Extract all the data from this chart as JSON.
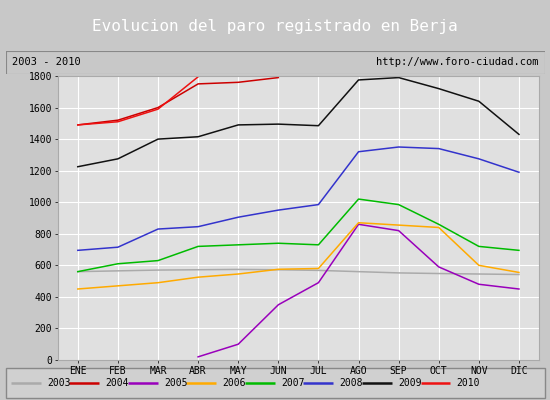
{
  "title": "Evolucion del paro registrado en Berja",
  "subtitle_left": "2003 - 2010",
  "subtitle_right": "http://www.foro-ciudad.com",
  "months": [
    "ENE",
    "FEB",
    "MAR",
    "ABR",
    "MAY",
    "JUN",
    "JUL",
    "AGO",
    "SEP",
    "OCT",
    "NOV",
    "DIC"
  ],
  "series_ordered": [
    "2003",
    "2004",
    "2005",
    "2006",
    "2007",
    "2008",
    "2009",
    "2010"
  ],
  "series_data": {
    "2003": [
      560,
      565,
      570,
      572,
      574,
      572,
      568,
      560,
      552,
      548,
      545,
      542
    ],
    "2004": [
      1490,
      1520,
      1600,
      1750,
      1760,
      1790,
      null,
      null,
      null,
      null,
      null,
      null
    ],
    "2005": [
      null,
      null,
      null,
      20,
      100,
      350,
      490,
      860,
      820,
      590,
      480,
      450
    ],
    "2006": [
      450,
      470,
      490,
      525,
      545,
      575,
      580,
      870,
      855,
      840,
      600,
      555
    ],
    "2007": [
      560,
      610,
      630,
      720,
      730,
      740,
      730,
      1020,
      985,
      860,
      720,
      695
    ],
    "2008": [
      695,
      715,
      830,
      845,
      905,
      950,
      985,
      1320,
      1350,
      1340,
      1275,
      1190
    ],
    "2009": [
      1225,
      1275,
      1400,
      1415,
      1490,
      1495,
      1485,
      1775,
      1790,
      1720,
      1640,
      1430
    ],
    "2010": [
      1490,
      1510,
      1590,
      1795,
      null,
      null,
      null,
      null,
      null,
      null,
      null,
      null
    ]
  },
  "series_colors": {
    "2003": "#aaaaaa",
    "2004": "#cc0000",
    "2005": "#9900bb",
    "2006": "#ffaa00",
    "2007": "#00bb00",
    "2008": "#3333cc",
    "2009": "#111111",
    "2010": "#ee1111"
  },
  "yticks": [
    0,
    200,
    400,
    600,
    800,
    1000,
    1200,
    1400,
    1600,
    1800
  ],
  "bg_color": "#c8c8c8",
  "plot_bg": "#e0e0e0",
  "title_bg": "#000000",
  "title_color": "#ffffff",
  "header_bg": "#c0c0c0",
  "legend_bg": "#d0d0d0"
}
